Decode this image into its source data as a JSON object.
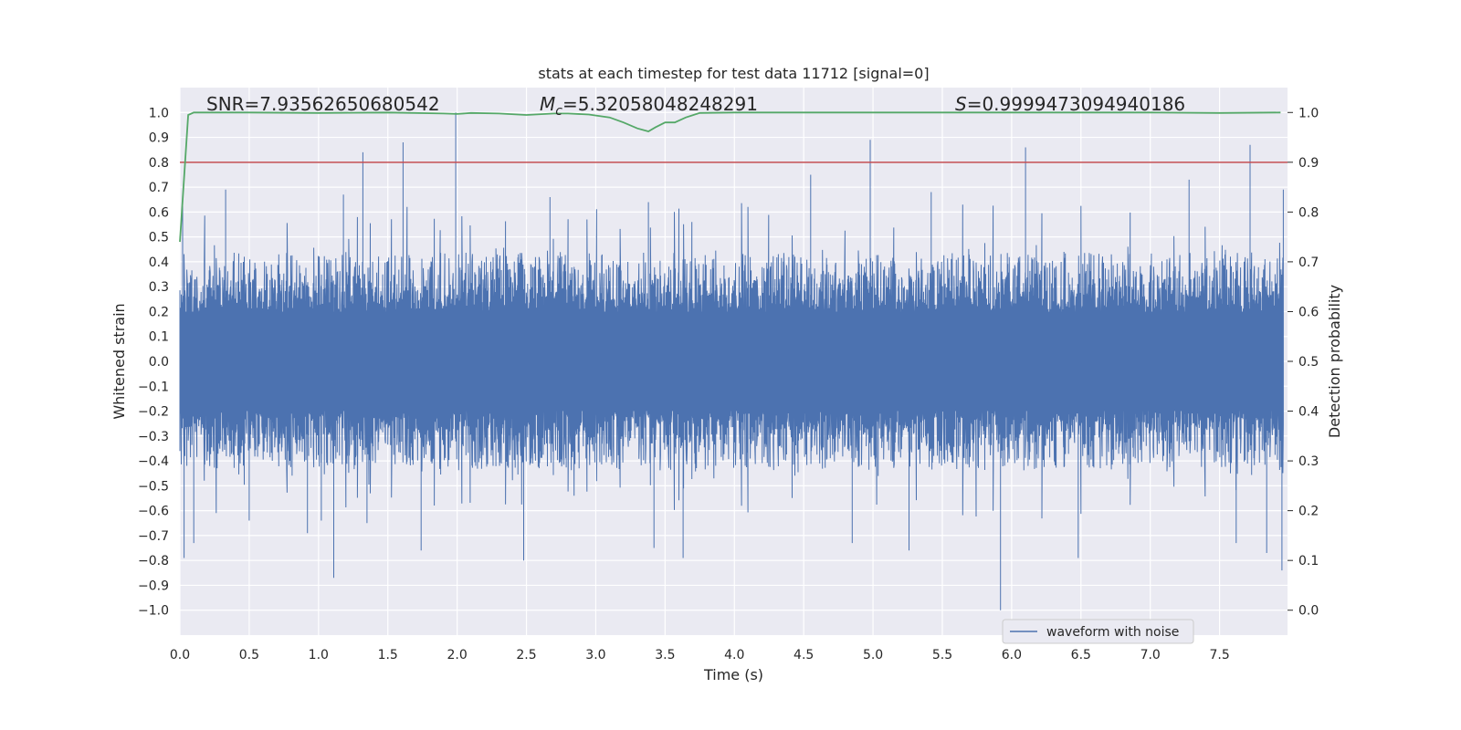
{
  "chart_data": {
    "type": "line",
    "title": "stats at each timestep for test data 11712 [signal=0]",
    "xlabel": "Time (s)",
    "ylabel": "Whitened strain",
    "y2label": "Detection probability",
    "xlim": [
      0.0,
      7.99
    ],
    "ylim": [
      -1.1,
      1.1
    ],
    "y2lim": [
      -0.05,
      1.05
    ],
    "xticks": [
      "0.0",
      "0.5",
      "1.0",
      "1.5",
      "2.0",
      "2.5",
      "3.0",
      "3.5",
      "4.0",
      "4.5",
      "5.0",
      "5.5",
      "6.0",
      "6.5",
      "7.0",
      "7.5"
    ],
    "yticks": [
      "1.0",
      "0.9",
      "0.8",
      "0.7",
      "0.6",
      "0.5",
      "0.4",
      "0.3",
      "0.2",
      "0.1",
      "0.0",
      "−0.1",
      "−0.2",
      "−0.3",
      "−0.4",
      "−0.5",
      "−0.6",
      "−0.7",
      "−0.8",
      "−0.9",
      "−1.0"
    ],
    "y2ticks": [
      "1.0",
      "0.9",
      "0.8",
      "0.7",
      "0.6",
      "0.5",
      "0.4",
      "0.3",
      "0.2",
      "0.1",
      "0.0"
    ],
    "grid": true,
    "legend": {
      "position": "lower-right",
      "entries": [
        "waveform with noise"
      ]
    },
    "annotations": {
      "snr_label": "SNR=7.93562650680542",
      "mc_symbol": "M",
      "mc_subscript": "c",
      "mc_value": "=5.32058048248291",
      "s_symbol": "S",
      "s_value": "=0.9999473094940186"
    },
    "series": [
      {
        "name": "waveform with noise",
        "axis": "left",
        "color": "#4c72b0",
        "envelope_typical": 0.38,
        "noise_band": 0.2,
        "max_value": 1.0,
        "min_value": -1.0,
        "notable_peaks": [
          {
            "x": 0.02,
            "y": 0.66
          },
          {
            "x": 0.03,
            "y": -0.79
          },
          {
            "x": 0.1,
            "y": -0.73
          },
          {
            "x": 0.33,
            "y": 0.69
          },
          {
            "x": 0.5,
            "y": -0.64
          },
          {
            "x": 0.92,
            "y": -0.69
          },
          {
            "x": 1.02,
            "y": -0.64
          },
          {
            "x": 1.11,
            "y": -0.87
          },
          {
            "x": 1.18,
            "y": 0.67
          },
          {
            "x": 1.32,
            "y": 0.84
          },
          {
            "x": 1.35,
            "y": -0.65
          },
          {
            "x": 1.61,
            "y": 0.88
          },
          {
            "x": 1.74,
            "y": -0.76
          },
          {
            "x": 1.99,
            "y": 1.0
          },
          {
            "x": 2.48,
            "y": -0.8
          },
          {
            "x": 2.67,
            "y": 0.66
          },
          {
            "x": 3.38,
            "y": 0.64
          },
          {
            "x": 3.42,
            "y": -0.75
          },
          {
            "x": 3.63,
            "y": -0.79
          },
          {
            "x": 4.55,
            "y": 0.75
          },
          {
            "x": 4.85,
            "y": -0.73
          },
          {
            "x": 4.98,
            "y": 0.89
          },
          {
            "x": 5.26,
            "y": -0.76
          },
          {
            "x": 5.42,
            "y": 0.68
          },
          {
            "x": 5.92,
            "y": -1.0
          },
          {
            "x": 6.1,
            "y": 0.86
          },
          {
            "x": 6.48,
            "y": -0.79
          },
          {
            "x": 7.28,
            "y": 0.73
          },
          {
            "x": 7.62,
            "y": -0.73
          },
          {
            "x": 7.72,
            "y": 0.87
          },
          {
            "x": 7.84,
            "y": -0.77
          },
          {
            "x": 7.95,
            "y": -0.84
          },
          {
            "x": 7.96,
            "y": 0.69
          }
        ]
      },
      {
        "name": "threshold",
        "axis": "right",
        "color": "#c44e52",
        "x": [
          0.0,
          7.99
        ],
        "y": [
          0.9,
          0.9
        ]
      },
      {
        "name": "detection probability",
        "axis": "right",
        "color": "#55a868",
        "x": [
          0.0,
          0.06,
          0.1,
          0.2,
          0.5,
          1.0,
          1.5,
          1.9,
          2.0,
          2.1,
          2.3,
          2.5,
          2.7,
          2.8,
          2.95,
          3.1,
          3.2,
          3.3,
          3.38,
          3.43,
          3.5,
          3.57,
          3.65,
          3.75,
          4.0,
          5.0,
          6.0,
          7.0,
          7.5,
          7.94
        ],
        "y": [
          0.74,
          0.995,
          1.0,
          1.0,
          1.0,
          0.999,
          1.0,
          0.998,
          0.997,
          0.999,
          0.998,
          0.995,
          0.998,
          0.998,
          0.996,
          0.99,
          0.98,
          0.968,
          0.962,
          0.97,
          0.98,
          0.98,
          0.99,
          0.999,
          1.0,
          1.0,
          1.0,
          1.0,
          0.999,
          1.0
        ]
      }
    ]
  }
}
